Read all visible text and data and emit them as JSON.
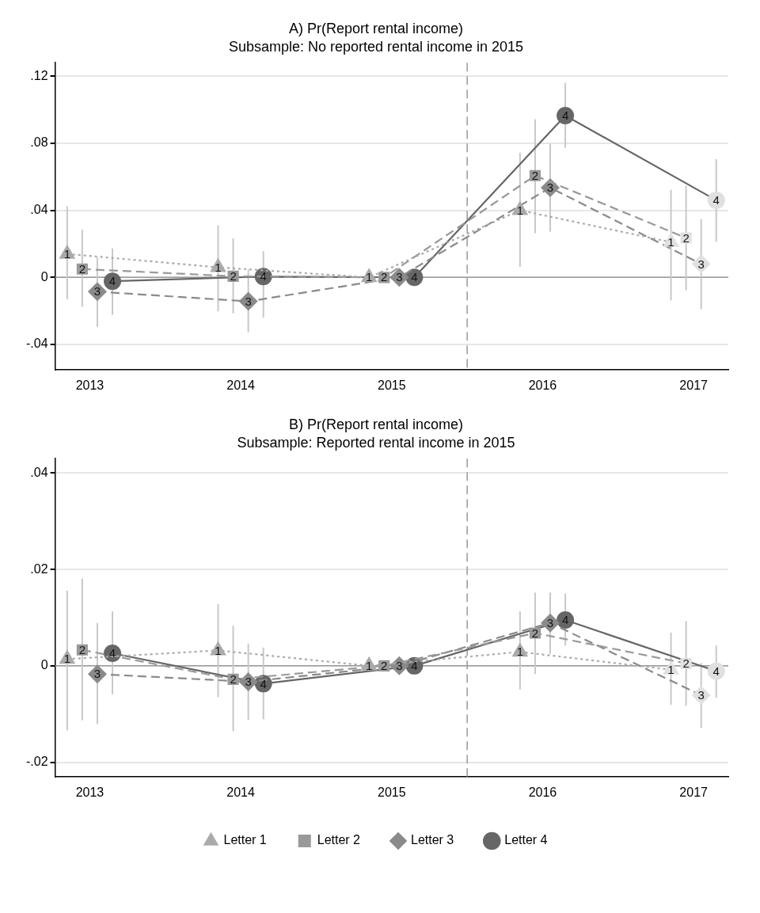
{
  "chart_data": [
    {
      "type": "line",
      "title": "A) Pr(Report rental income)",
      "subtitle": "Subsample: No reported rental income in 2015",
      "xlim": [
        2012.77,
        2017.23
      ],
      "xticks": [
        2013,
        2014,
        2015,
        2016,
        2017
      ],
      "ylim": [
        -0.055,
        0.128
      ],
      "yticks": [
        {
          "value": -0.04,
          "label": "-.04"
        },
        {
          "value": 0,
          "label": "0"
        },
        {
          "value": 0.04,
          "label": ".04"
        },
        {
          "value": 0.08,
          "label": ".08"
        },
        {
          "value": 0.12,
          "label": ".12"
        }
      ],
      "grid": "y",
      "ref_lines": [
        {
          "axis": "y",
          "value": 0,
          "color": "#999999",
          "line_style": "solid"
        },
        {
          "axis": "x",
          "value": 2015.5,
          "color": "#999999",
          "line_style": "dashed"
        }
      ],
      "series": [
        {
          "color": "#aaaaaa",
          "colors": [
            "#aaaaaa",
            "#aaaaaa",
            "#aaaaaa",
            "#aaaaaa",
            "#e0e0e0"
          ],
          "marker": "triangle",
          "line_style": "dotted",
          "x": [
            2012.85,
            2013.85,
            2014.85,
            2015.85,
            2016.85
          ],
          "values": [
            0.014,
            0.006,
            0,
            0.04,
            0.021
          ],
          "errors": [
            [
              -0.013,
              0.0425
            ],
            [
              -0.0203,
              0.031
            ],
            null,
            [
              0.0063,
              0.0743
            ],
            [
              -0.0137,
              0.0523
            ]
          ]
        },
        {
          "color": "#999999",
          "colors": [
            "#999999",
            "#999999",
            "#999999",
            "#999999",
            "#e0e0e0"
          ],
          "marker": "square",
          "line_style": "dashed",
          "x": [
            2012.95,
            2013.95,
            2014.95,
            2015.95,
            2016.95
          ],
          "values": [
            0.005,
            0.0007,
            0,
            0.0607,
            0.0235
          ],
          "errors": [
            [
              -0.0175,
              0.0285
            ],
            [
              -0.0215,
              0.0233
            ],
            null,
            [
              0.0263,
              0.0943
            ],
            [
              -0.0077,
              0.0547
            ]
          ]
        },
        {
          "color": "#8a8a8a",
          "colors": [
            "#8a8a8a",
            "#8a8a8a",
            "#8a8a8a",
            "#8a8a8a",
            "#e0e0e0"
          ],
          "marker": "diamond",
          "line_style": "dashed",
          "x": [
            2013.05,
            2014.05,
            2015.05,
            2016.05,
            2017.05
          ],
          "values": [
            -0.0085,
            -0.0143,
            0,
            0.0535,
            0.008
          ],
          "errors": [
            [
              -0.0295,
              0.012
            ],
            [
              -0.0327,
              0.0047
            ],
            null,
            [
              0.0273,
              0.0797
            ],
            [
              -0.019,
              0.0348
            ]
          ]
        },
        {
          "color": "#666666",
          "colors": [
            "#666666",
            "#666666",
            "#666666",
            "#666666",
            "#e0e0e0"
          ],
          "marker": "circle",
          "line_style": "solid",
          "x": [
            2013.15,
            2014.15,
            2015.15,
            2016.15,
            2017.15
          ],
          "values": [
            -0.0023,
            0.0005,
            0,
            0.0965,
            0.046
          ],
          "errors": [
            [
              -0.0223,
              0.0173
            ],
            [
              -0.024,
              0.0157
            ],
            null,
            [
              0.0773,
              0.116
            ],
            [
              0.0213,
              0.0705
            ]
          ]
        }
      ],
      "annotations": [
        {
          "text": "1",
          "x": 2012.85,
          "y": 0.014
        },
        {
          "text": "1",
          "x": 2013.85,
          "y": 0.006
        },
        {
          "text": "1",
          "x": 2014.85,
          "y": 0
        },
        {
          "text": "1",
          "x": 2015.85,
          "y": 0.04
        },
        {
          "text": "1",
          "x": 2016.85,
          "y": 0.021
        },
        {
          "text": "2",
          "x": 2012.95,
          "y": 0.005
        },
        {
          "text": "2",
          "x": 2013.95,
          "y": 0.0007
        },
        {
          "text": "2",
          "x": 2014.95,
          "y": 0
        },
        {
          "text": "2",
          "x": 2015.95,
          "y": 0.0607
        },
        {
          "text": "2",
          "x": 2016.95,
          "y": 0.0235
        },
        {
          "text": "3",
          "x": 2013.05,
          "y": -0.0085
        },
        {
          "text": "3",
          "x": 2014.05,
          "y": -0.0143
        },
        {
          "text": "3",
          "x": 2015.05,
          "y": 0
        },
        {
          "text": "3",
          "x": 2016.05,
          "y": 0.0535
        },
        {
          "text": "3",
          "x": 2017.05,
          "y": 0.008
        },
        {
          "text": "4",
          "x": 2013.15,
          "y": -0.0023
        },
        {
          "text": "4",
          "x": 2014.15,
          "y": 0.0005
        },
        {
          "text": "4",
          "x": 2015.15,
          "y": 0
        },
        {
          "text": "4",
          "x": 2016.15,
          "y": 0.0965
        },
        {
          "text": "4",
          "x": 2017.15,
          "y": 0.046
        }
      ]
    },
    {
      "type": "line",
      "title": "B) Pr(Report rental income)",
      "subtitle": "Subsample: Reported rental income in 2015",
      "xlim": [
        2012.77,
        2017.23
      ],
      "xticks": [
        2013,
        2014,
        2015,
        2016,
        2017
      ],
      "ylim": [
        -0.023,
        0.043
      ],
      "yticks": [
        {
          "value": -0.02,
          "label": "-.02"
        },
        {
          "value": 0,
          "label": "0"
        },
        {
          "value": 0.02,
          "label": ".02"
        },
        {
          "value": 0.04,
          "label": ".04"
        }
      ],
      "grid": "y",
      "legend": "bottom",
      "ref_lines": [
        {
          "axis": "y",
          "value": 0,
          "color": "#999999",
          "line_style": "solid"
        },
        {
          "axis": "x",
          "value": 2015.5,
          "color": "#999999",
          "line_style": "dashed"
        }
      ],
      "series": [
        {
          "name": "Letter 1",
          "color": "#aaaaaa",
          "colors": [
            "#aaaaaa",
            "#aaaaaa",
            "#aaaaaa",
            "#aaaaaa",
            "#e0e0e0"
          ],
          "marker": "triangle",
          "line_style": "dotted",
          "x": [
            2012.85,
            2013.85,
            2014.85,
            2015.85,
            2016.85
          ],
          "values": [
            0.0014,
            0.0032,
            0,
            0.0029,
            -0.0008
          ],
          "errors": [
            [
              -0.0134,
              0.0156
            ],
            [
              -0.0065,
              0.0128
            ],
            null,
            [
              -0.0049,
              0.0113
            ],
            [
              -0.0081,
              0.0069
            ]
          ]
        },
        {
          "name": "Letter 2",
          "color": "#999999",
          "colors": [
            "#999999",
            "#999999",
            "#999999",
            "#999999",
            "#e0e0e0"
          ],
          "marker": "square",
          "line_style": "dashed",
          "x": [
            2012.95,
            2013.95,
            2014.95,
            2015.95,
            2016.95
          ],
          "values": [
            0.0033,
            -0.0028,
            0,
            0.0068,
            0.0005
          ],
          "errors": [
            [
              -0.0113,
              0.0181
            ],
            [
              -0.0136,
              0.0083
            ],
            null,
            [
              -0.0017,
              0.0152
            ],
            [
              -0.0083,
              0.0093
            ]
          ]
        },
        {
          "name": "Letter 3",
          "color": "#8a8a8a",
          "colors": [
            "#8a8a8a",
            "#8a8a8a",
            "#8a8a8a",
            "#8a8a8a",
            "#e0e0e0"
          ],
          "marker": "diamond",
          "line_style": "dashed",
          "x": [
            2013.05,
            2014.05,
            2015.05,
            2016.05,
            2017.05
          ],
          "values": [
            -0.0017,
            -0.0033,
            0,
            0.0089,
            -0.0061
          ],
          "errors": [
            [
              -0.0121,
              0.0089
            ],
            [
              -0.0112,
              0.0046
            ],
            null,
            [
              0.0025,
              0.0152
            ],
            [
              -0.0129,
              0.0006
            ]
          ]
        },
        {
          "name": "Letter 4",
          "color": "#666666",
          "colors": [
            "#666666",
            "#666666",
            "#666666",
            "#666666",
            "#e0e0e0"
          ],
          "marker": "circle",
          "line_style": "solid",
          "x": [
            2013.15,
            2014.15,
            2015.15,
            2016.15,
            2017.15
          ],
          "values": [
            0.0026,
            -0.0037,
            0,
            0.0095,
            -0.0011
          ],
          "errors": [
            [
              -0.0059,
              0.0113
            ],
            [
              -0.0111,
              0.0038
            ],
            null,
            [
              0.0042,
              0.015
            ],
            [
              -0.0066,
              0.0042
            ]
          ]
        }
      ],
      "annotations": [
        {
          "text": "1",
          "x": 2012.85,
          "y": 0.0014
        },
        {
          "text": "1",
          "x": 2013.85,
          "y": 0.0032
        },
        {
          "text": "1",
          "x": 2014.85,
          "y": 0
        },
        {
          "text": "1",
          "x": 2015.85,
          "y": 0.0029
        },
        {
          "text": "1",
          "x": 2016.85,
          "y": -0.0008
        },
        {
          "text": "2",
          "x": 2012.95,
          "y": 0.0033
        },
        {
          "text": "2",
          "x": 2013.95,
          "y": -0.0028
        },
        {
          "text": "2",
          "x": 2014.95,
          "y": 0
        },
        {
          "text": "2",
          "x": 2015.95,
          "y": 0.0068
        },
        {
          "text": "2",
          "x": 2016.95,
          "y": 0.0005
        },
        {
          "text": "3",
          "x": 2013.05,
          "y": -0.0017
        },
        {
          "text": "3",
          "x": 2014.05,
          "y": -0.0033
        },
        {
          "text": "3",
          "x": 2015.05,
          "y": 0
        },
        {
          "text": "3",
          "x": 2016.05,
          "y": 0.0089
        },
        {
          "text": "3",
          "x": 2017.05,
          "y": -0.0061
        },
        {
          "text": "4",
          "x": 2013.15,
          "y": 0.0026
        },
        {
          "text": "4",
          "x": 2014.15,
          "y": -0.0037
        },
        {
          "text": "4",
          "x": 2015.15,
          "y": 0
        },
        {
          "text": "4",
          "x": 2016.15,
          "y": 0.0095
        },
        {
          "text": "4",
          "x": 2017.15,
          "y": -0.0011
        }
      ]
    }
  ]
}
